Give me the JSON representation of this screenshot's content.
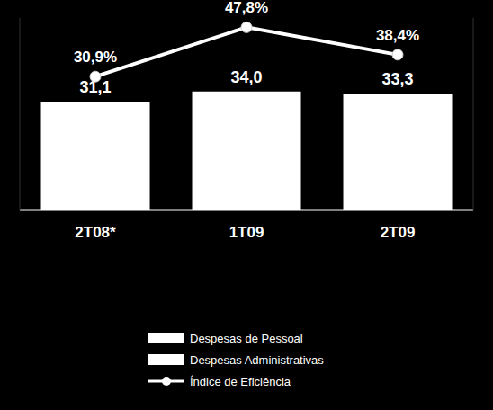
{
  "chart_data": {
    "type": "bar",
    "categories": [
      "2T08*",
      "1T09",
      "2T09"
    ],
    "ylim": [
      0,
      55
    ],
    "y2lim": [
      -15,
      51
    ],
    "tick_labels": "x",
    "data_labels": true,
    "stacked": true,
    "legend": "bottom",
    "series": [
      {
        "name": "Despesas de Pessoal",
        "type": "bar",
        "color": "#ffffff",
        "values": [
          31.1,
          34.0,
          33.3
        ],
        "value_labels": [
          "31,1",
          "34,0",
          "33,3"
        ]
      },
      {
        "name": "Despesas Administrativas",
        "type": "bar",
        "color": "#ffffff",
        "values": [
          null,
          null,
          null
        ]
      },
      {
        "name": "Índice de Eficiência",
        "type": "line",
        "axis": "y2",
        "color": "#ffffff",
        "marker": "circle",
        "values": [
          30.9,
          47.8,
          38.4
        ],
        "value_labels": [
          "30,9%",
          "47,8%",
          "38,4%"
        ]
      }
    ]
  }
}
